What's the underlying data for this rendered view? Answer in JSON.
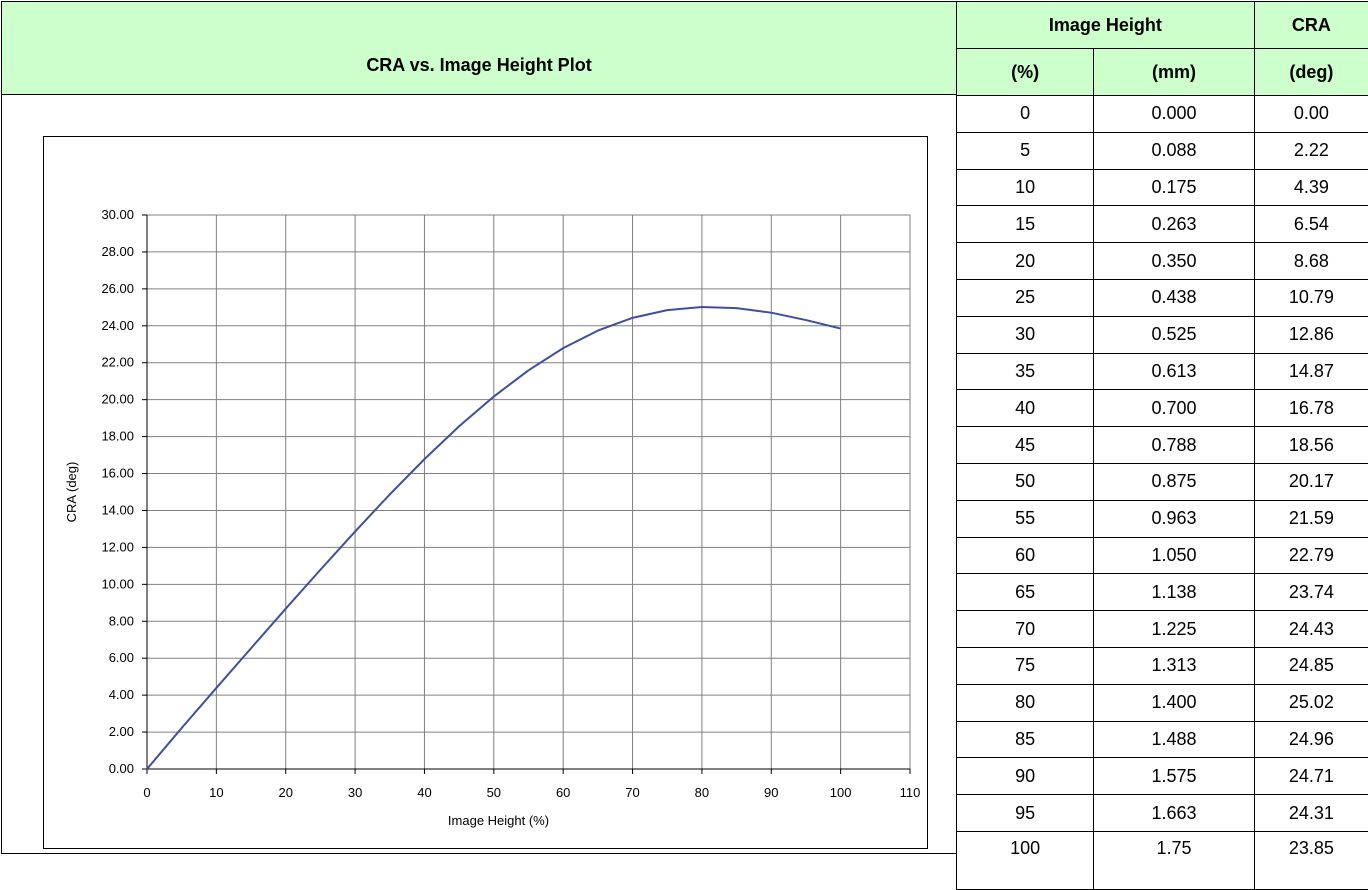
{
  "title": "CRA vs. Image Height Plot",
  "table": {
    "header_group_1": "Image Height",
    "header_group_2": "CRA",
    "col1_unit": "(%)",
    "col2_unit": "(mm)",
    "col3_unit": "(deg)",
    "rows": [
      [
        "0",
        "0.000",
        "0.00"
      ],
      [
        "5",
        "0.088",
        "2.22"
      ],
      [
        "10",
        "0.175",
        "4.39"
      ],
      [
        "15",
        "0.263",
        "6.54"
      ],
      [
        "20",
        "0.350",
        "8.68"
      ],
      [
        "25",
        "0.438",
        "10.79"
      ],
      [
        "30",
        "0.525",
        "12.86"
      ],
      [
        "35",
        "0.613",
        "14.87"
      ],
      [
        "40",
        "0.700",
        "16.78"
      ],
      [
        "45",
        "0.788",
        "18.56"
      ],
      [
        "50",
        "0.875",
        "20.17"
      ],
      [
        "55",
        "0.963",
        "21.59"
      ],
      [
        "60",
        "1.050",
        "22.79"
      ],
      [
        "65",
        "1.138",
        "23.74"
      ],
      [
        "70",
        "1.225",
        "24.43"
      ],
      [
        "75",
        "1.313",
        "24.85"
      ],
      [
        "80",
        "1.400",
        "25.02"
      ],
      [
        "85",
        "1.488",
        "24.96"
      ],
      [
        "90",
        "1.575",
        "24.71"
      ],
      [
        "95",
        "1.663",
        "24.31"
      ],
      [
        "100",
        "1.75",
        "23.85"
      ]
    ]
  },
  "chart_data": {
    "type": "line",
    "title": "",
    "xlabel": "Image Height (%)",
    "ylabel": "CRA (deg)",
    "xlim": [
      0,
      110
    ],
    "ylim": [
      0,
      30
    ],
    "x_ticks": [
      "0",
      "10",
      "20",
      "30",
      "40",
      "50",
      "60",
      "70",
      "80",
      "90",
      "100",
      "110"
    ],
    "y_ticks": [
      "0.00",
      "2.00",
      "4.00",
      "6.00",
      "8.00",
      "10.00",
      "12.00",
      "14.00",
      "16.00",
      "18.00",
      "20.00",
      "22.00",
      "24.00",
      "26.00",
      "28.00",
      "30.00"
    ],
    "grid": true,
    "line_color": "#3f4fa0",
    "series": [
      {
        "x": [
          0,
          5,
          10,
          15,
          20,
          25,
          30,
          35,
          40,
          45,
          50,
          55,
          60,
          65,
          70,
          75,
          80,
          85,
          90,
          95,
          100
        ],
        "values": [
          0.0,
          2.22,
          4.39,
          6.54,
          8.68,
          10.79,
          12.86,
          14.87,
          16.78,
          18.56,
          20.17,
          21.59,
          22.79,
          23.74,
          24.43,
          24.85,
          25.02,
          24.96,
          24.71,
          24.31,
          23.85
        ]
      }
    ]
  }
}
